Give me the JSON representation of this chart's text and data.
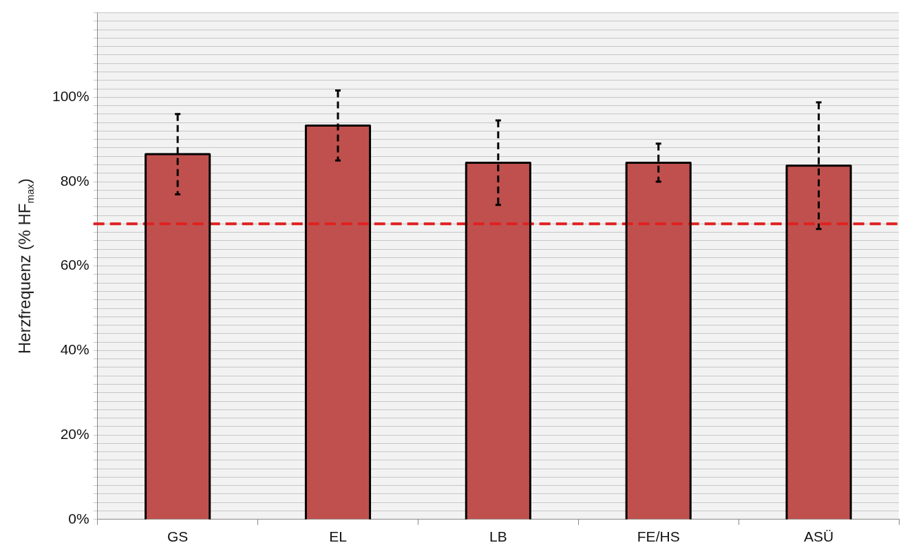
{
  "chart_data": {
    "type": "bar",
    "ylabel": "Herzfrequenz (% HF$_{max}$)",
    "categories": [
      "GS",
      "EL",
      "LB",
      "FE/HS",
      "ASÜ"
    ],
    "values": [
      86.5,
      93.3,
      84.5,
      84.5,
      83.8
    ],
    "errors": [
      9.5,
      8.3,
      10,
      4.5,
      15
    ],
    "color": "#c0504d",
    "ylim": [
      0,
      120
    ],
    "yticks": [
      {
        "value": 0,
        "label": "0%"
      },
      {
        "value": 2,
        "label": null
      },
      {
        "value": 4,
        "label": null
      },
      {
        "value": 6,
        "label": null
      },
      {
        "value": 8,
        "label": null
      },
      {
        "value": 10,
        "label": null
      },
      {
        "value": 12,
        "label": null
      },
      {
        "value": 14,
        "label": null
      },
      {
        "value": 16,
        "label": null
      },
      {
        "value": 18,
        "label": null
      },
      {
        "value": 20,
        "label": "20%"
      },
      {
        "value": 22,
        "label": null
      },
      {
        "value": 24,
        "label": null
      },
      {
        "value": 26,
        "label": null
      },
      {
        "value": 28,
        "label": null
      },
      {
        "value": 30,
        "label": null
      },
      {
        "value": 32,
        "label": null
      },
      {
        "value": 34,
        "label": null
      },
      {
        "value": 36,
        "label": null
      },
      {
        "value": 38,
        "label": null
      },
      {
        "value": 40,
        "label": "40%"
      },
      {
        "value": 42,
        "label": null
      },
      {
        "value": 44,
        "label": null
      },
      {
        "value": 46,
        "label": null
      },
      {
        "value": 48,
        "label": null
      },
      {
        "value": 50,
        "label": null
      },
      {
        "value": 52,
        "label": null
      },
      {
        "value": 54,
        "label": null
      },
      {
        "value": 56,
        "label": null
      },
      {
        "value": 58,
        "label": null
      },
      {
        "value": 60,
        "label": "60%"
      },
      {
        "value": 62,
        "label": null
      },
      {
        "value": 64,
        "label": null
      },
      {
        "value": 66,
        "label": null
      },
      {
        "value": 68,
        "label": null
      },
      {
        "value": 70,
        "label": null
      },
      {
        "value": 72,
        "label": null
      },
      {
        "value": 74,
        "label": null
      },
      {
        "value": 76,
        "label": null
      },
      {
        "value": 78,
        "label": null
      },
      {
        "value": 80,
        "label": "80%"
      },
      {
        "value": 82,
        "label": null
      },
      {
        "value": 84,
        "label": null
      },
      {
        "value": 86,
        "label": null
      },
      {
        "value": 88,
        "label": null
      },
      {
        "value": 90,
        "label": null
      },
      {
        "value": 92,
        "label": null
      },
      {
        "value": 94,
        "label": null
      },
      {
        "value": 96,
        "label": null
      },
      {
        "value": 98,
        "label": null
      },
      {
        "value": 100,
        "label": "100%"
      },
      {
        "value": 102,
        "label": null
      },
      {
        "value": 104,
        "label": null
      },
      {
        "value": 106,
        "label": null
      },
      {
        "value": 108,
        "label": null
      },
      {
        "value": 110,
        "label": null
      },
      {
        "value": 112,
        "label": null
      },
      {
        "value": 114,
        "label": null
      },
      {
        "value": 116,
        "label": null
      },
      {
        "value": 118,
        "label": null
      },
      {
        "value": 120,
        "label": null
      }
    ],
    "grid": "y",
    "ref_lines": [
      {
        "axis": "y",
        "value": 70,
        "color": "#e02020",
        "line_style": "dashed"
      }
    ]
  }
}
